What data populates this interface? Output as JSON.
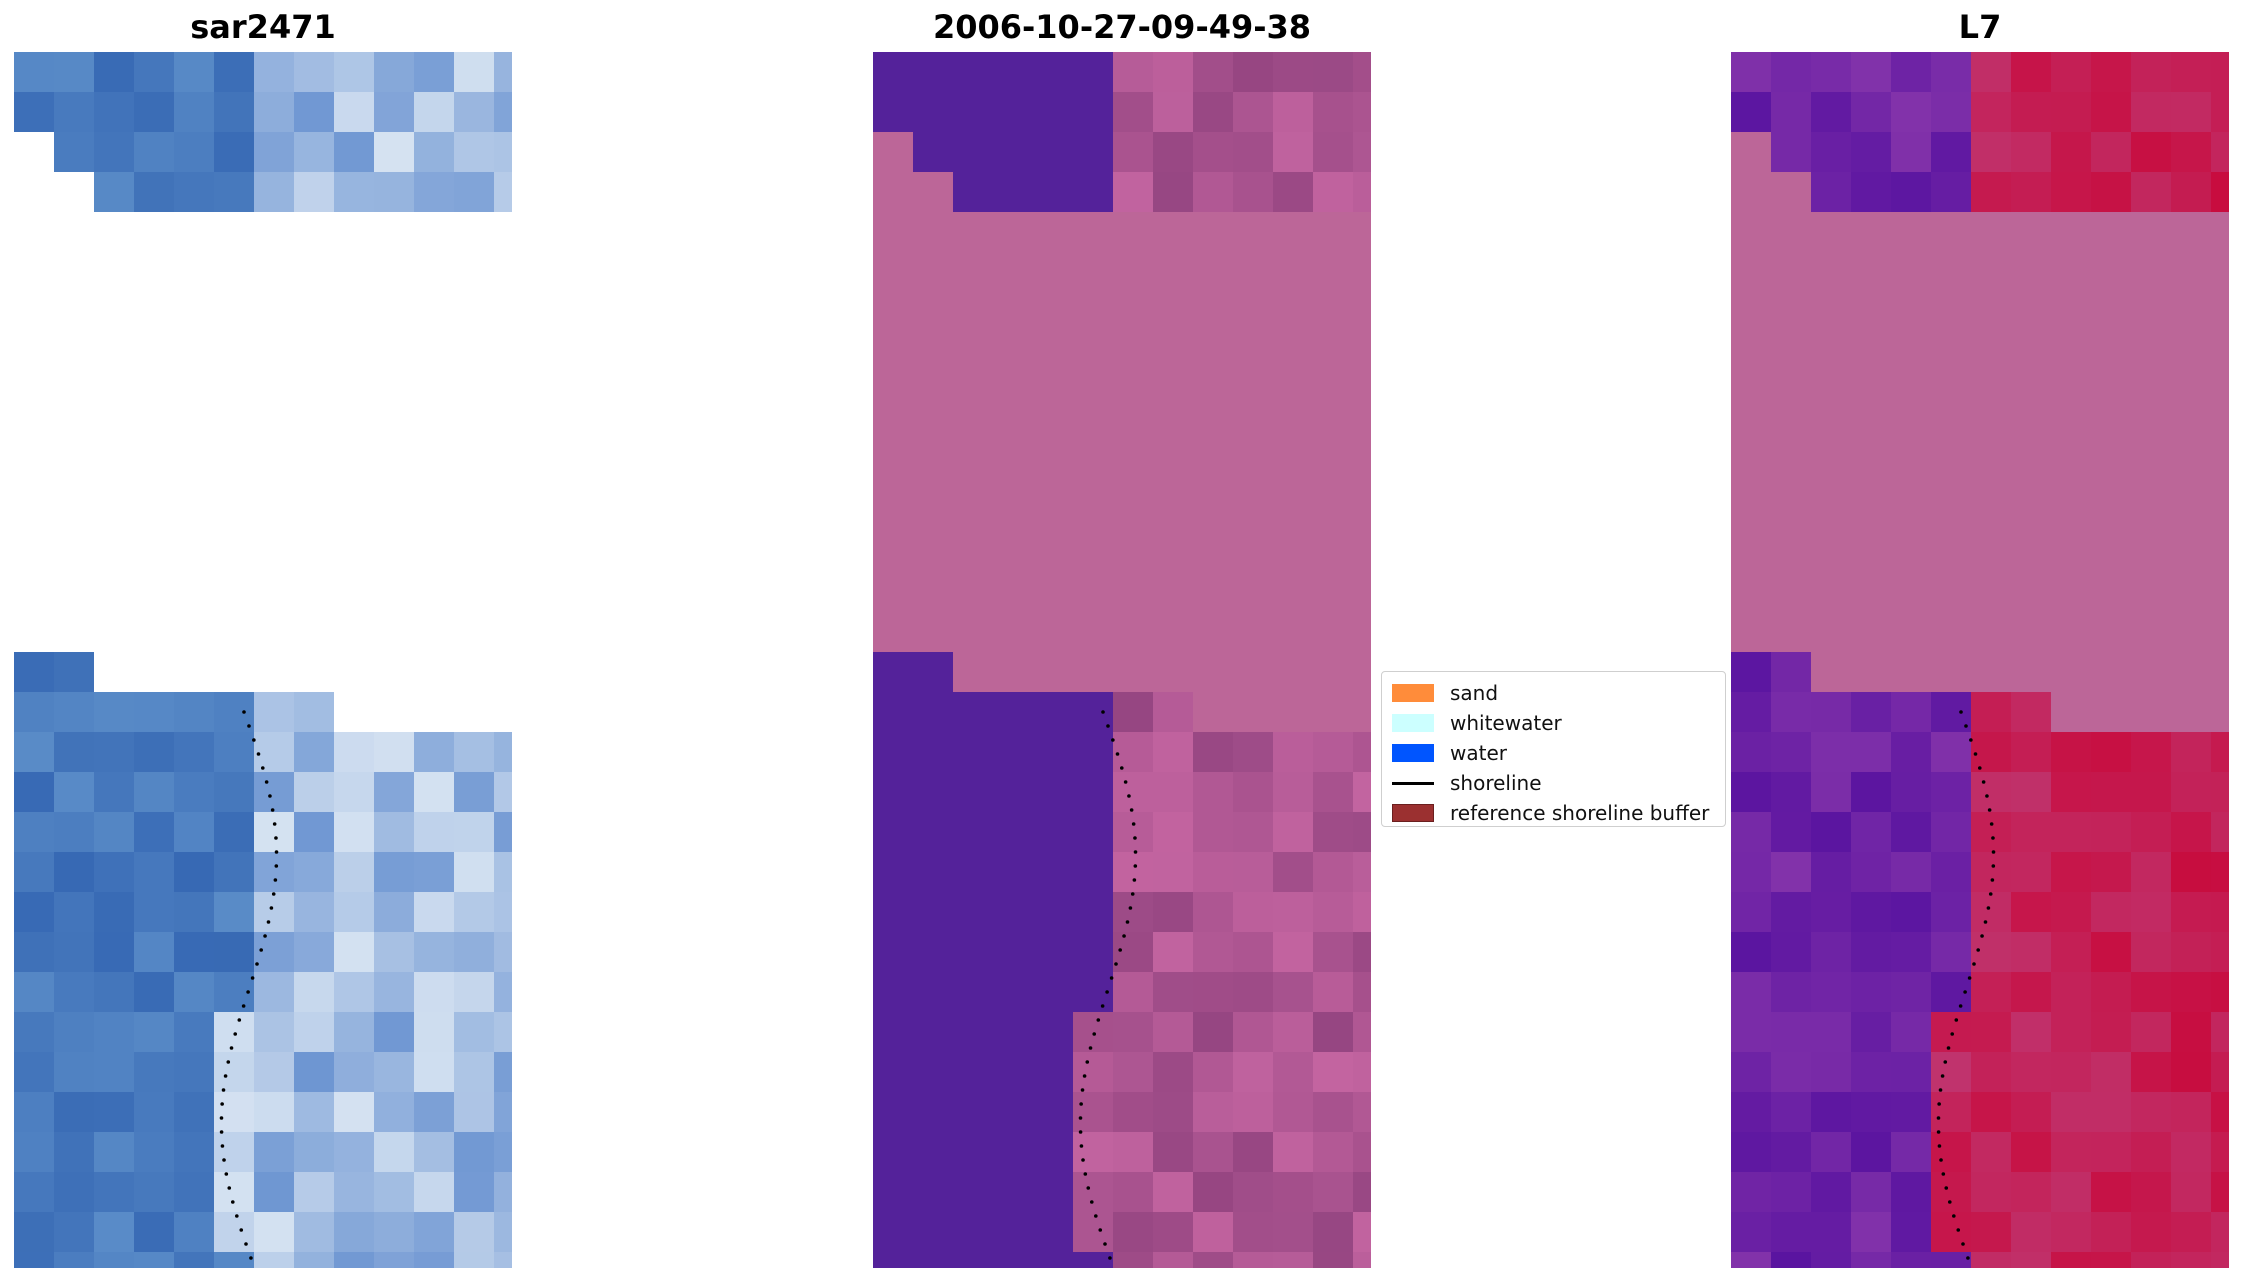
{
  "panels": [
    {
      "title": "sar2471"
    },
    {
      "title": "2006-10-27-09-49-38"
    },
    {
      "title": "L7"
    }
  ],
  "legend": {
    "items": [
      {
        "label": "sand",
        "type": "patch",
        "color": "#ff8c3a"
      },
      {
        "label": "whitewater",
        "type": "patch",
        "color": "#ccffff"
      },
      {
        "label": "water",
        "type": "patch",
        "color": "#0055ff"
      },
      {
        "label": "shoreline",
        "type": "line",
        "color": "#000000"
      },
      {
        "label": "reference shoreline buffer",
        "type": "patch",
        "color": "#9b3030"
      }
    ]
  }
}
